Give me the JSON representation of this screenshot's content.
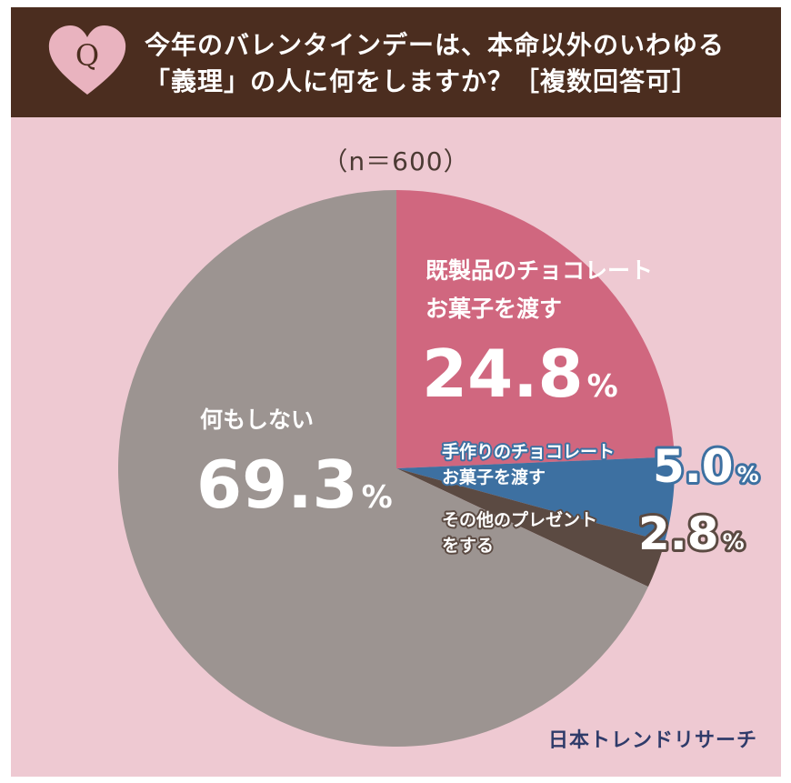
{
  "header": {
    "badge_letter": "Q",
    "question_line1": "今年のバレンタインデーは、本命以外のいわゆる",
    "question_line2": "「義理」の人に何をしますか？［複数回答可］"
  },
  "sample_size": "（n＝600）",
  "brand": "日本トレンドリサーチ",
  "colors": {
    "header_bg": "#4b2d1f",
    "card_bg": "#eec9d2",
    "slice_chocolate": "#d0677f",
    "slice_handmade": "#3d70a1",
    "slice_other": "#5b4a42",
    "slice_nothing": "#9c9491"
  },
  "chart_data": {
    "type": "pie",
    "title": "今年のバレンタインデーは、本命以外のいわゆる「義理」の人に何をしますか？［複数回答可］",
    "unit": "%",
    "slices": [
      {
        "label_lines": [
          "既製品のチョコレート",
          "お菓子を渡す"
        ],
        "value": 24.8,
        "display": "24.8"
      },
      {
        "label_lines": [
          "手作りのチョコレート",
          "お菓子を渡す"
        ],
        "value": 5.0,
        "display": "5.0"
      },
      {
        "label_lines": [
          "その他のプレゼント",
          "をする"
        ],
        "value": 2.8,
        "display": "2.8"
      },
      {
        "label_lines": [
          "何もしない"
        ],
        "value": 69.3,
        "display": "69.3"
      }
    ]
  }
}
